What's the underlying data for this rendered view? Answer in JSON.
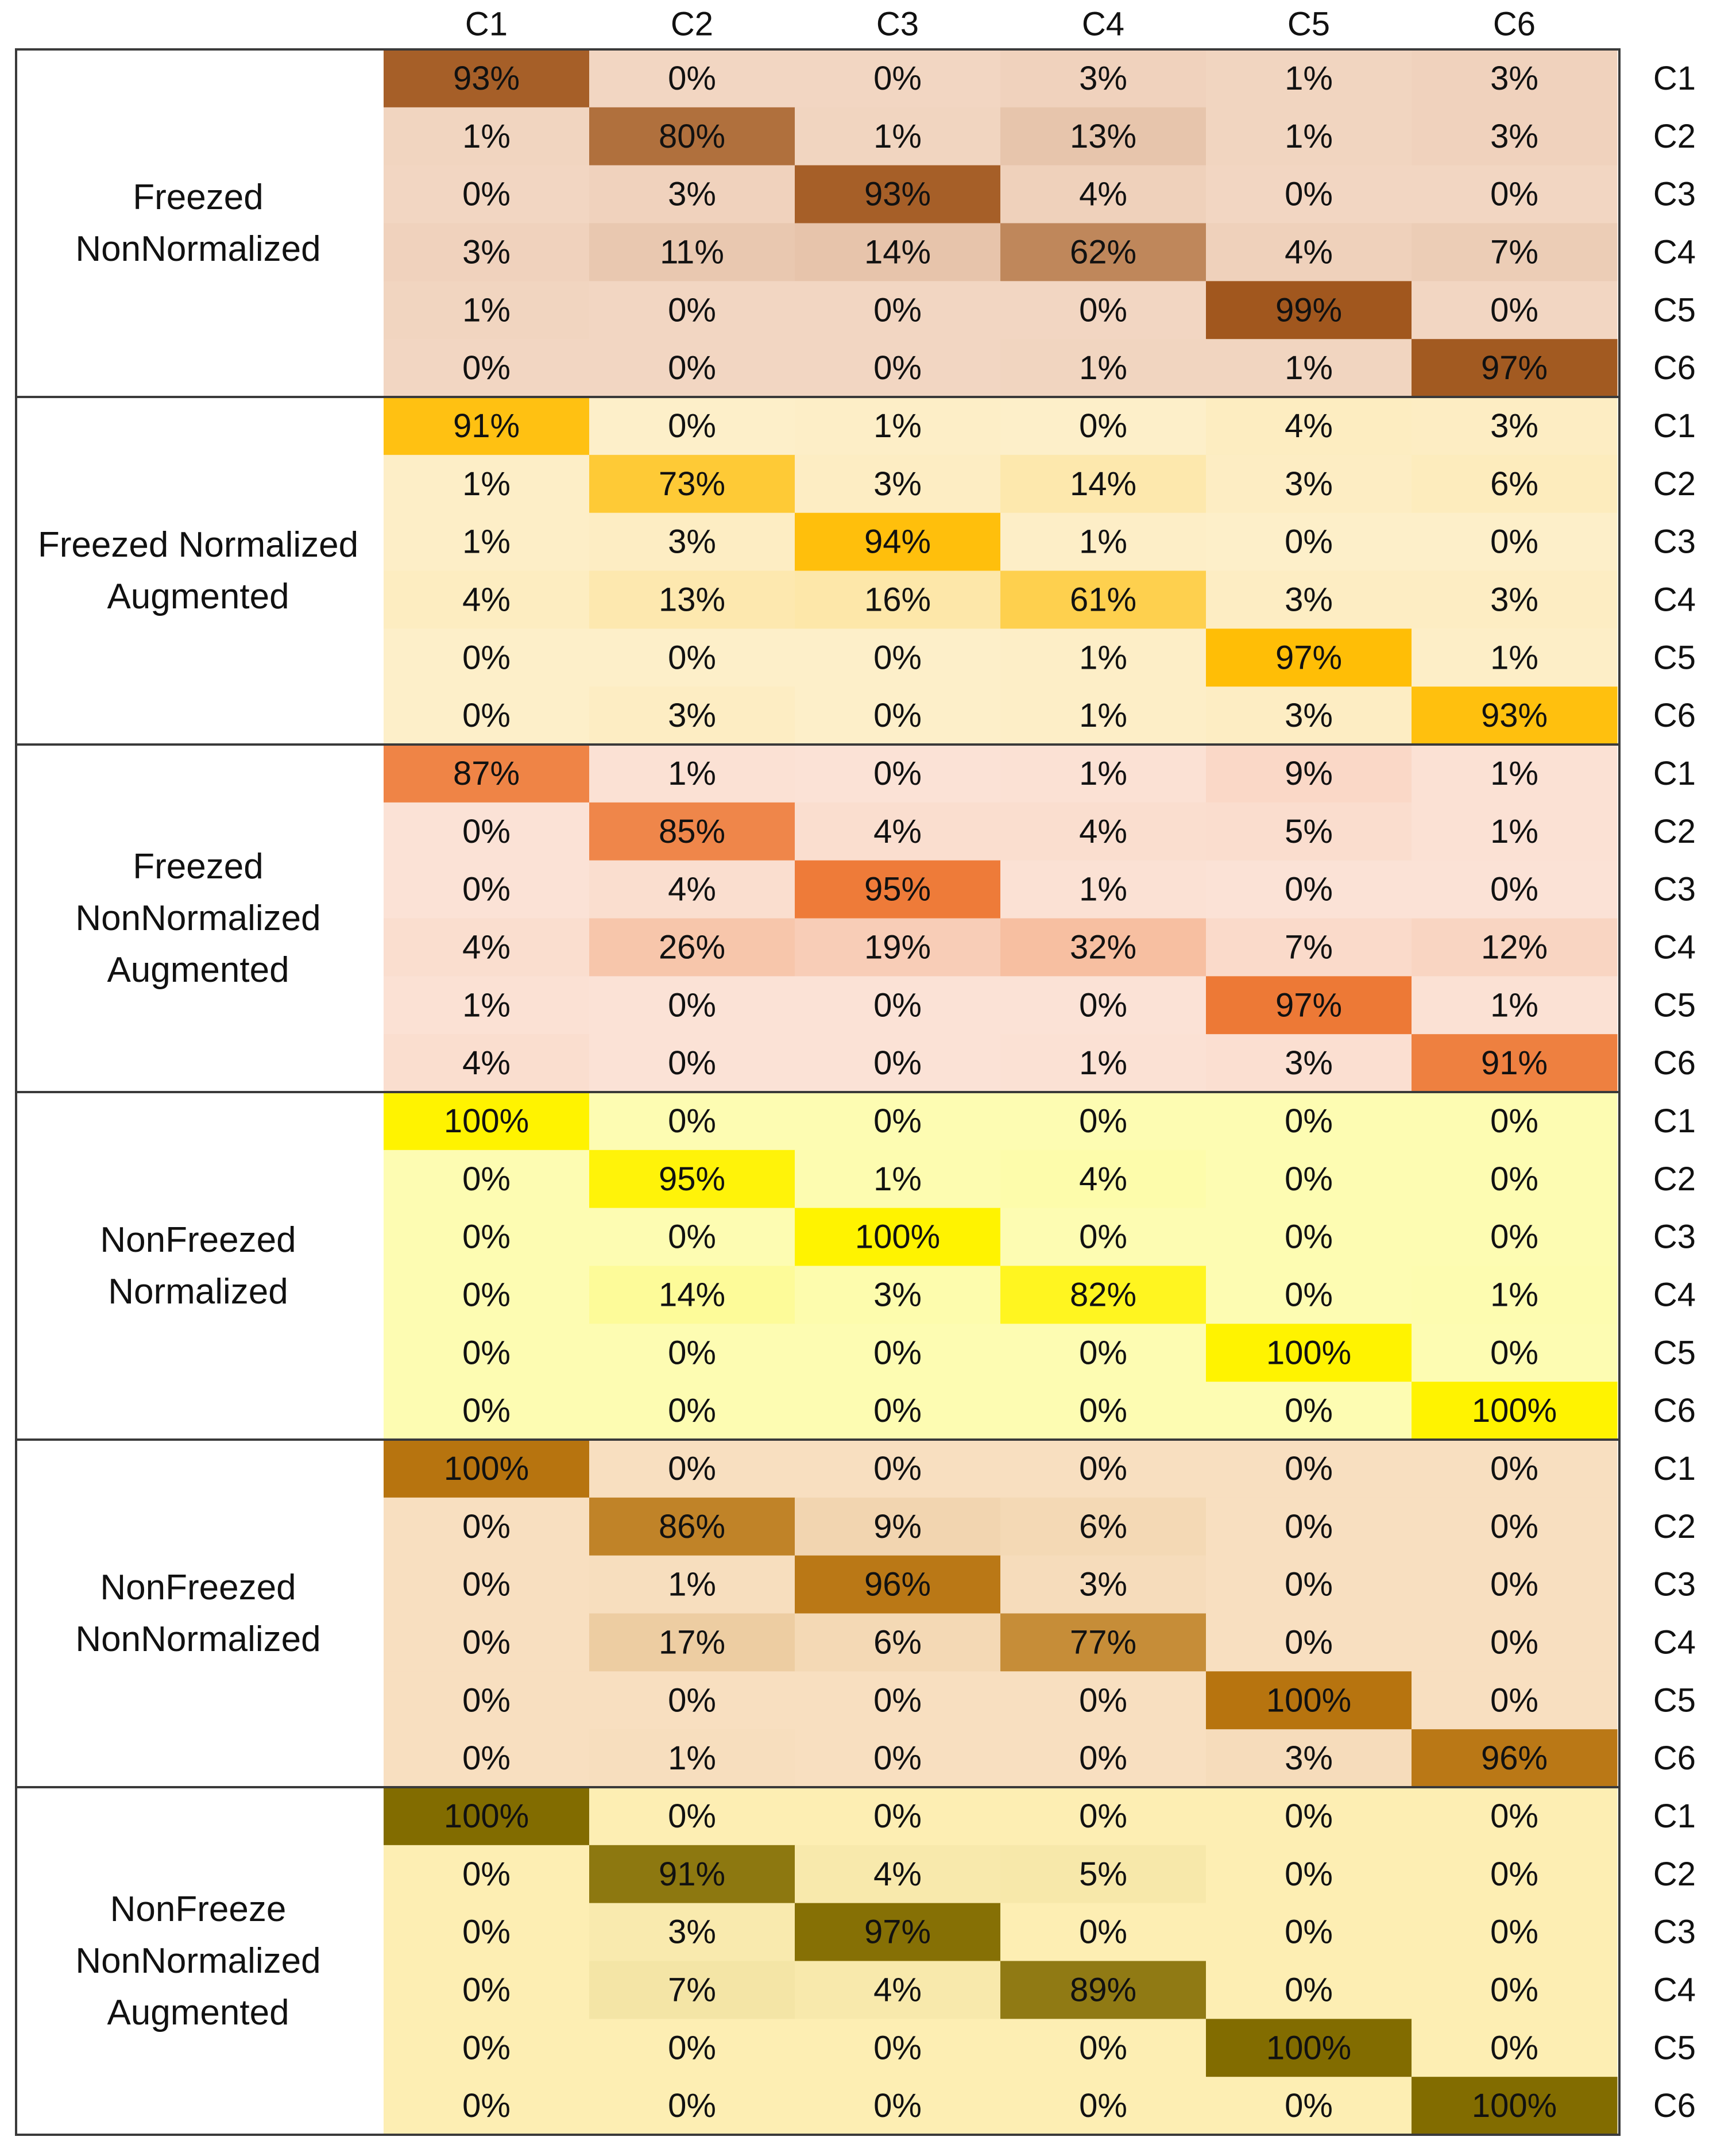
{
  "chart_data": {
    "type": "heatmap",
    "title": "",
    "xlabel": "",
    "ylabel": "",
    "columns": [
      "C1",
      "C2",
      "C3",
      "C4",
      "C5",
      "C6"
    ],
    "rows": [
      "C1",
      "C2",
      "C3",
      "C4",
      "C5",
      "C6"
    ],
    "value_suffix": "%",
    "vmin": 0,
    "vmax": 100,
    "groups": [
      {
        "label_lines": [
          "Freezed",
          "NonNormalized"
        ],
        "color_low": "#f2d6c2",
        "color_high": "#a0561c",
        "values": [
          [
            93,
            0,
            0,
            3,
            1,
            3
          ],
          [
            1,
            80,
            1,
            13,
            1,
            3
          ],
          [
            0,
            3,
            93,
            4,
            0,
            0
          ],
          [
            3,
            11,
            14,
            62,
            4,
            7
          ],
          [
            1,
            0,
            0,
            0,
            99,
            0
          ],
          [
            0,
            0,
            0,
            1,
            1,
            97
          ]
        ]
      },
      {
        "label_lines": [
          "Freezed Normalized",
          "Augmented"
        ],
        "color_low": "#fdefc9",
        "color_high": "#ffbc00",
        "values": [
          [
            91,
            0,
            1,
            0,
            4,
            3
          ],
          [
            1,
            73,
            3,
            14,
            3,
            6
          ],
          [
            1,
            3,
            94,
            1,
            0,
            0
          ],
          [
            4,
            13,
            16,
            61,
            3,
            3
          ],
          [
            0,
            0,
            0,
            1,
            97,
            1
          ],
          [
            0,
            3,
            0,
            1,
            3,
            93
          ]
        ]
      },
      {
        "label_lines": [
          "Freezed",
          "NonNormalized",
          "Augmented"
        ],
        "color_low": "#fbe2d6",
        "color_high": "#ed7631",
        "values": [
          [
            87,
            1,
            0,
            1,
            9,
            1
          ],
          [
            0,
            85,
            4,
            4,
            5,
            1
          ],
          [
            0,
            4,
            95,
            1,
            0,
            0
          ],
          [
            4,
            26,
            19,
            32,
            7,
            12
          ],
          [
            1,
            0,
            0,
            0,
            97,
            1
          ],
          [
            4,
            0,
            0,
            1,
            3,
            91
          ]
        ]
      },
      {
        "label_lines": [
          "NonFreezed",
          "Normalized"
        ],
        "color_low": "#fdfcb2",
        "color_high": "#fff300",
        "values": [
          [
            100,
            0,
            0,
            0,
            0,
            0
          ],
          [
            0,
            95,
            1,
            4,
            0,
            0
          ],
          [
            0,
            0,
            100,
            0,
            0,
            0
          ],
          [
            0,
            14,
            3,
            82,
            0,
            1
          ],
          [
            0,
            0,
            0,
            0,
            100,
            0
          ],
          [
            0,
            0,
            0,
            0,
            0,
            100
          ]
        ]
      },
      {
        "label_lines": [
          "NonFreezed",
          "NonNormalized"
        ],
        "color_low": "#f8dfc0",
        "color_high": "#b7740f",
        "values": [
          [
            100,
            0,
            0,
            0,
            0,
            0
          ],
          [
            0,
            86,
            9,
            6,
            0,
            0
          ],
          [
            0,
            1,
            96,
            3,
            0,
            0
          ],
          [
            0,
            17,
            6,
            77,
            0,
            0
          ],
          [
            0,
            0,
            0,
            0,
            100,
            0
          ],
          [
            0,
            1,
            0,
            0,
            3,
            96
          ]
        ]
      },
      {
        "label_lines": [
          "NonFreeze",
          "NonNormalized",
          "Augmented"
        ],
        "color_low": "#fdeeb3",
        "color_high": "#826c00",
        "values": [
          [
            100,
            0,
            0,
            0,
            0,
            0
          ],
          [
            0,
            91,
            4,
            5,
            0,
            0
          ],
          [
            0,
            3,
            97,
            0,
            0,
            0
          ],
          [
            0,
            7,
            4,
            89,
            0,
            0
          ],
          [
            0,
            0,
            0,
            0,
            100,
            0
          ],
          [
            0,
            0,
            0,
            0,
            0,
            100
          ]
        ]
      }
    ]
  }
}
